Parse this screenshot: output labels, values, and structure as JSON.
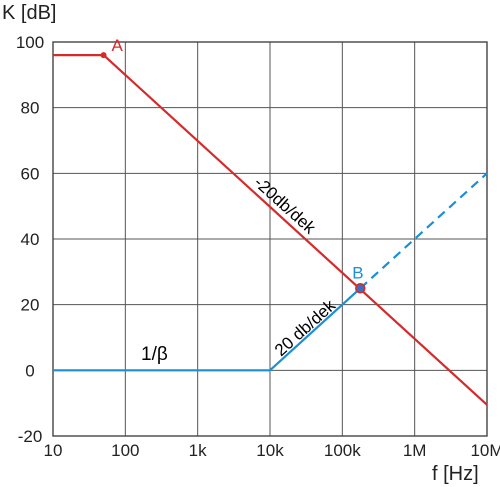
{
  "chart_data": {
    "type": "line",
    "xlabel": "f [Hz]",
    "ylabel": "K [dB]",
    "x_scale": "log",
    "xlim": [
      10,
      10000000
    ],
    "ylim": [
      -20,
      100
    ],
    "grid": true,
    "x_ticks": [
      {
        "value": 10,
        "label": "10"
      },
      {
        "value": 100,
        "label": "100"
      },
      {
        "value": 1000,
        "label": "1k"
      },
      {
        "value": 10000,
        "label": "10k"
      },
      {
        "value": 100000,
        "label": "100k"
      },
      {
        "value": 1000000,
        "label": "1M"
      },
      {
        "value": 10000000,
        "label": "10M"
      }
    ],
    "y_ticks": [
      {
        "value": -20,
        "label": "-20"
      },
      {
        "value": 0,
        "label": "0"
      },
      {
        "value": 20,
        "label": "20"
      },
      {
        "value": 40,
        "label": "40"
      },
      {
        "value": 60,
        "label": "60"
      },
      {
        "value": 80,
        "label": "80"
      },
      {
        "value": 100,
        "label": "100"
      }
    ],
    "series": [
      {
        "color": "#d62a2a",
        "style": "solid",
        "x": [
          10,
          50,
          10000000
        ],
        "y": [
          96,
          96,
          -10.5
        ]
      },
      {
        "name": "1/β",
        "color": "#1a8fd6",
        "style": "solid",
        "x": [
          10,
          10000,
          177000
        ],
        "y": [
          0,
          0,
          25
        ]
      },
      {
        "color": "#1a8fd6",
        "style": "dashed",
        "x": [
          177000,
          10000000
        ],
        "y": [
          25,
          60
        ]
      }
    ],
    "points": [
      {
        "label": "A",
        "x": 50,
        "y": 96,
        "color": "#d62a2a"
      },
      {
        "label": "B",
        "x": 177000,
        "y": 25,
        "color": "#1a8fd6"
      }
    ],
    "annotations": [
      {
        "text": "-20db/dek",
        "color": "#d62a2a"
      },
      {
        "text": "20 db/dek",
        "color": "#1a8fd6"
      },
      {
        "text": "1/β",
        "color": "#222222"
      }
    ]
  }
}
